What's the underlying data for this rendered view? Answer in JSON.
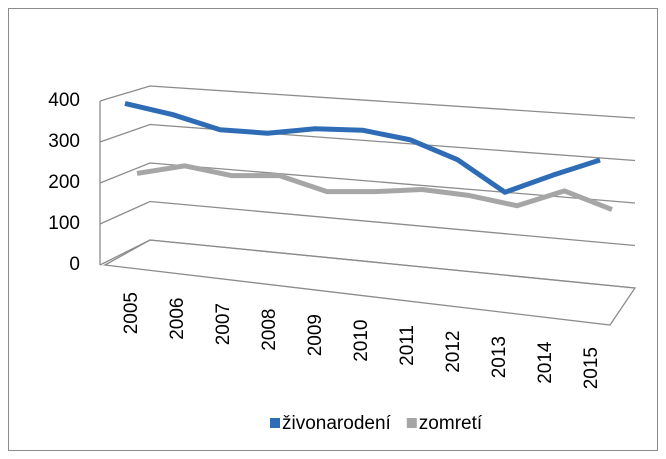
{
  "chart_data": {
    "type": "line3d",
    "categories": [
      "2005",
      "2006",
      "2007",
      "2008",
      "2009",
      "2010",
      "2011",
      "2012",
      "2013",
      "2014",
      "2015"
    ],
    "series": [
      {
        "name": "živonarodení",
        "color": "#2e6cb5",
        "values": [
          350,
          330,
          300,
          300,
          320,
          325,
          310,
          270,
          200,
          250,
          295
        ]
      },
      {
        "name": "zomretí",
        "color": "#a6a6a6",
        "values": [
          170,
          200,
          185,
          195,
          165,
          175,
          190,
          185,
          170,
          215,
          180
        ]
      }
    ],
    "ylim": [
      0,
      400
    ],
    "yticks": [
      0,
      100,
      200,
      300,
      400
    ],
    "grid": true
  }
}
